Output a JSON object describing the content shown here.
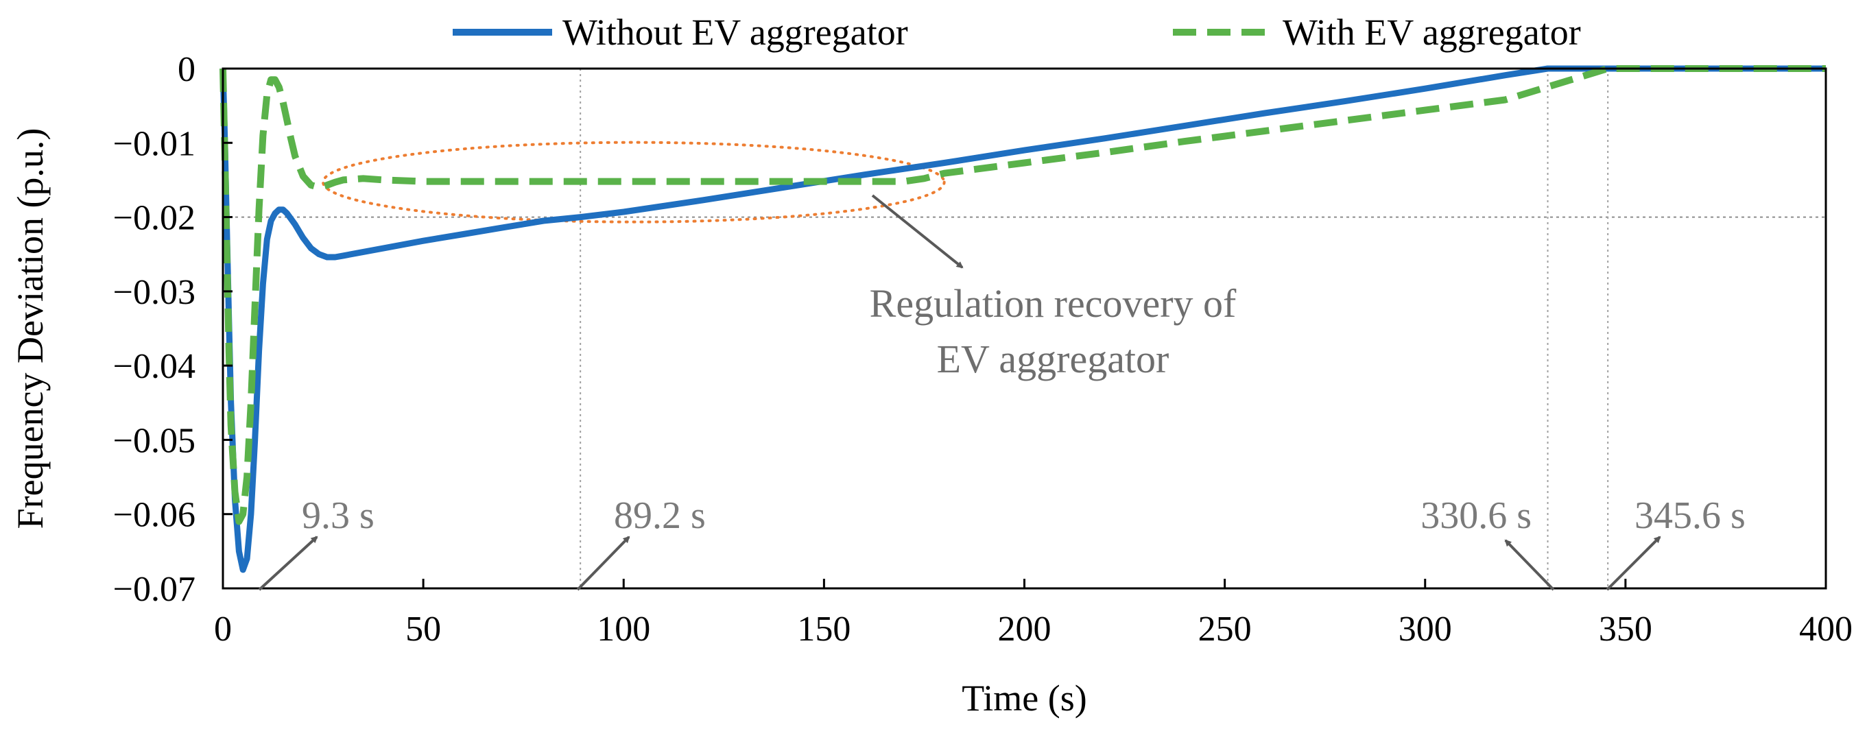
{
  "chart_data": {
    "type": "line",
    "title": "",
    "xlabel": "Time (s)",
    "ylabel": "Frequency Deviation (p.u.)",
    "xlim": [
      0,
      400
    ],
    "ylim": [
      -0.07,
      0
    ],
    "x_ticks": [
      0,
      50,
      100,
      150,
      200,
      250,
      300,
      350,
      400
    ],
    "x_tick_labels": [
      "0",
      "50",
      "100",
      "150",
      "200",
      "250",
      "300",
      "350",
      "400"
    ],
    "y_ticks": [
      0,
      -0.01,
      -0.02,
      -0.03,
      -0.04,
      -0.05,
      -0.06,
      -0.07
    ],
    "y_tick_labels": [
      "0",
      "−0.01",
      "−0.02",
      "−0.03",
      "−0.04",
      "−0.05",
      "−0.06",
      "−0.07"
    ],
    "legend_position": "top",
    "series": [
      {
        "name": "Without EV aggregator",
        "color": "#1f6fc0",
        "style": "solid",
        "x": [
          0,
          0.5,
          1,
          1.5,
          2,
          3,
          4,
          5,
          6,
          7,
          8,
          9,
          10,
          11,
          12,
          13,
          14,
          15,
          16,
          18,
          20,
          22,
          24,
          26,
          28,
          30,
          40,
          50,
          60,
          70,
          80,
          89.2,
          100,
          120,
          140,
          160,
          180,
          200,
          220,
          240,
          260,
          280,
          300,
          320,
          330.6,
          340,
          360,
          380,
          400
        ],
        "y": [
          0,
          -0.01,
          -0.022,
          -0.034,
          -0.045,
          -0.058,
          -0.065,
          -0.0675,
          -0.066,
          -0.06,
          -0.05,
          -0.038,
          -0.029,
          -0.023,
          -0.0205,
          -0.0195,
          -0.019,
          -0.019,
          -0.0195,
          -0.021,
          -0.0228,
          -0.0242,
          -0.025,
          -0.0254,
          -0.0254,
          -0.0252,
          -0.0242,
          -0.0232,
          -0.0223,
          -0.0214,
          -0.0205,
          -0.02,
          -0.0193,
          -0.0177,
          -0.016,
          -0.0143,
          -0.0127,
          -0.011,
          -0.0094,
          -0.0077,
          -0.006,
          -0.0044,
          -0.0027,
          -0.0009,
          0,
          0,
          0,
          0,
          0
        ]
      },
      {
        "name": "With EV aggregator",
        "color": "#5ab24a",
        "style": "dashed",
        "x": [
          0,
          0.5,
          1,
          1.5,
          2,
          3,
          4,
          5,
          6,
          7,
          8,
          9,
          10,
          11,
          12,
          13,
          14,
          15,
          16,
          17,
          18,
          20,
          22,
          24,
          26,
          28,
          30,
          35,
          40,
          50,
          60,
          80,
          100,
          120,
          150,
          170,
          175,
          180,
          200,
          220,
          240,
          260,
          280,
          300,
          320,
          345.6,
          360,
          380,
          400
        ],
        "y": [
          0,
          -0.012,
          -0.025,
          -0.038,
          -0.048,
          -0.057,
          -0.061,
          -0.06,
          -0.055,
          -0.045,
          -0.032,
          -0.019,
          -0.009,
          -0.0035,
          -0.0015,
          -0.0015,
          -0.0025,
          -0.0045,
          -0.007,
          -0.0095,
          -0.0118,
          -0.0145,
          -0.0157,
          -0.016,
          -0.0157,
          -0.0153,
          -0.015,
          -0.0148,
          -0.015,
          -0.0152,
          -0.0152,
          -0.0152,
          -0.0152,
          -0.0152,
          -0.0152,
          -0.0152,
          -0.0148,
          -0.0141,
          -0.0127,
          -0.0113,
          -0.0098,
          -0.0084,
          -0.007,
          -0.0056,
          -0.0042,
          0,
          0,
          0,
          0
        ]
      }
    ],
    "reference_lines": {
      "horizontal": [
        -0.02
      ],
      "vertical": [
        89.2,
        330.6,
        345.6
      ]
    },
    "highlight_region": {
      "label_line1": "Regulation recovery of",
      "label_line2": "EV aggregator",
      "color": "#ed7d31",
      "x_range": [
        25,
        180
      ],
      "y_center": -0.0153
    },
    "annotations": [
      {
        "label": "9.3 s",
        "x": 9.3
      },
      {
        "label": "89.2 s",
        "x": 89.2
      },
      {
        "label": "330.6 s",
        "x": 330.6
      },
      {
        "label": "345.6 s",
        "x": 345.6
      }
    ]
  }
}
